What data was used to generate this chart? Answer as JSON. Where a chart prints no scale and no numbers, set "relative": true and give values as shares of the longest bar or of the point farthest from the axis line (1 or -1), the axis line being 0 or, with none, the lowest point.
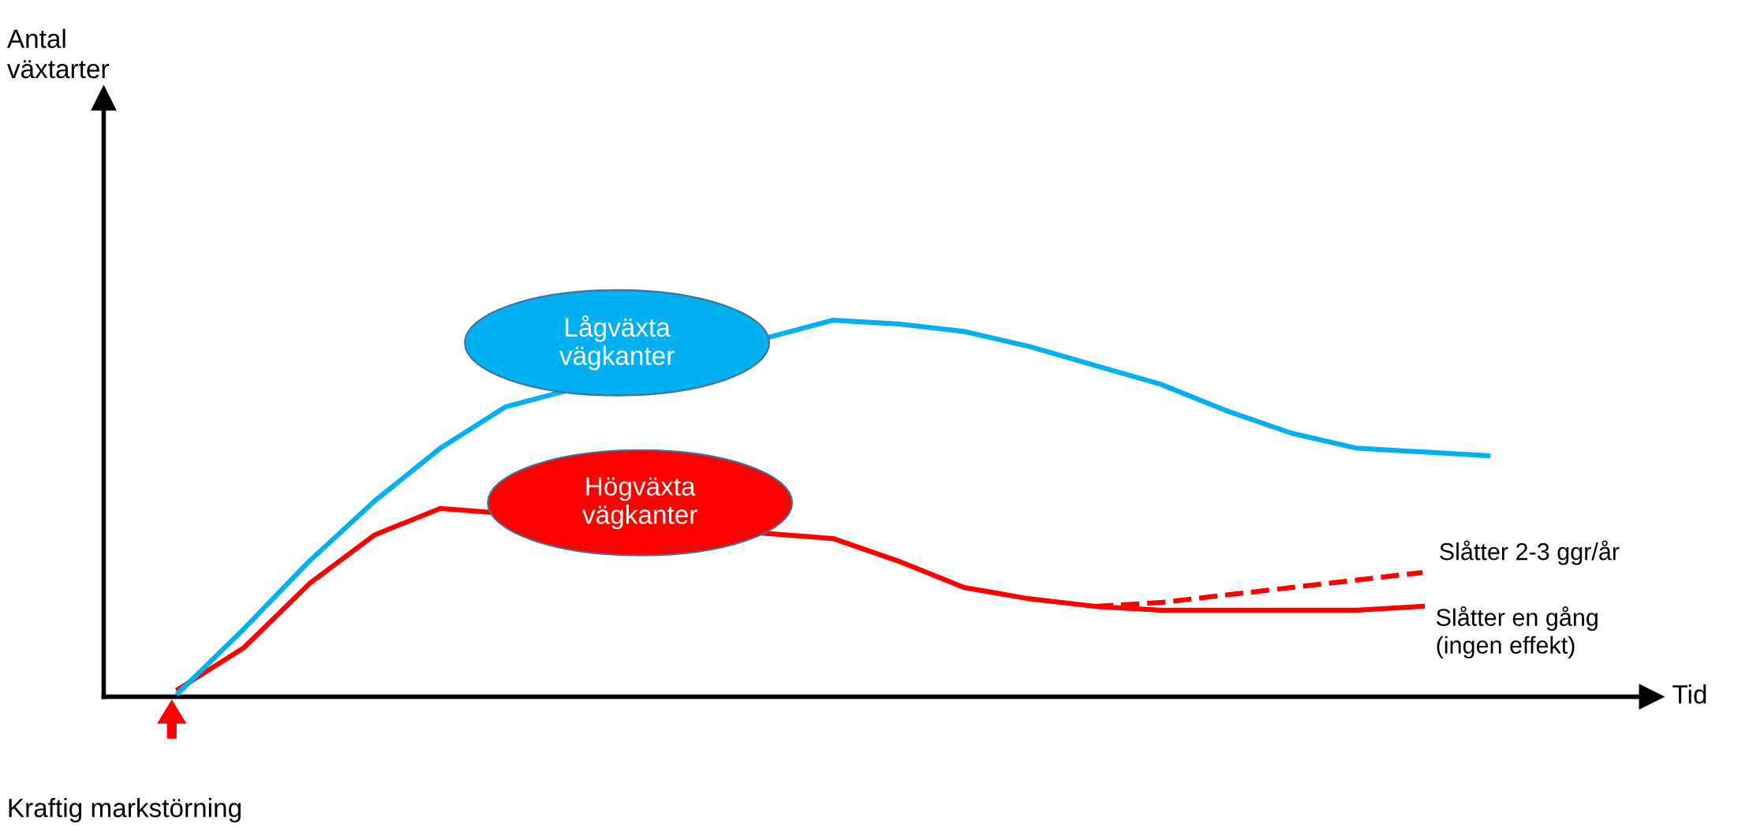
{
  "chart_data": {
    "type": "line",
    "relative": true,
    "categories": [
      null,
      null,
      null,
      null,
      null,
      null,
      null,
      null,
      null,
      null,
      null,
      null,
      null,
      null,
      null,
      null,
      null,
      null,
      null,
      null,
      null
    ],
    "series": [
      {
        "name": "Lågväxta vägkanter",
        "color": "#00b0f0",
        "values": [
          0.01,
          0.18,
          0.36,
          0.52,
          0.66,
          0.77,
          null,
          null,
          null,
          null,
          1.0,
          0.99,
          0.97,
          0.93,
          0.88,
          0.83,
          0.76,
          0.7,
          0.66,
          0.65,
          0.64
        ]
      },
      {
        "name": "Högväxta vägkanter",
        "color": "#ff0000",
        "values": [
          0.02,
          0.13,
          0.3,
          0.43,
          0.5,
          null,
          null,
          null,
          null,
          null,
          0.42,
          0.36,
          0.29,
          0.26,
          0.24,
          0.23,
          0.23,
          0.23,
          0.23,
          0.24,
          null
        ]
      },
      {
        "name": "Slåtter 2-3 ggr/år",
        "color": "#ff0000",
        "line_style": "dashed",
        "values": [
          null,
          null,
          null,
          null,
          null,
          null,
          null,
          null,
          null,
          null,
          null,
          null,
          null,
          null,
          0.24,
          0.25,
          0.27,
          0.29,
          0.31,
          0.33,
          null
        ]
      }
    ],
    "annotations": [
      "Slåtter en gång\n(ingen effekt)",
      "Kraftig markstörning",
      "Tid",
      "Antal\nväxtarter"
    ],
    "legend": false,
    "marker": "none",
    "line_style": "solid"
  }
}
